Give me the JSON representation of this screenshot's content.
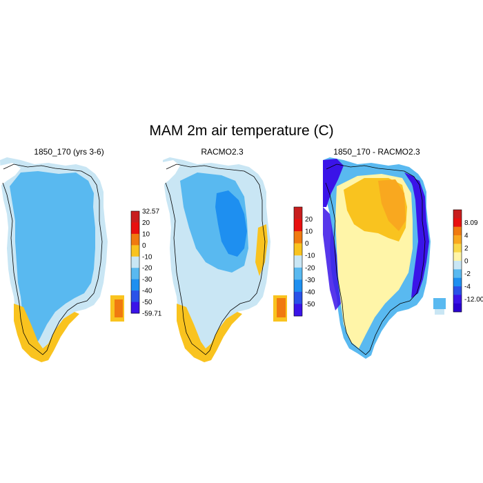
{
  "title": "MAM 2m air temperature (C)",
  "panels": [
    {
      "id": "left",
      "title": "1850_170 (yrs 3-6)",
      "colorbar": {
        "labels": [
          "32.57",
          "20",
          "10",
          "0",
          "-10",
          "-20",
          "-30",
          "-40",
          "-50",
          "-59.71"
        ],
        "colors": [
          "#c81e1e",
          "#e8100f",
          "#f07a10",
          "#f9c31f",
          "#c9e6f4",
          "#59b9f0",
          "#1e8ff0",
          "#2a52e8",
          "#3a14e8"
        ]
      }
    },
    {
      "id": "middle",
      "title": "RACMO2.3",
      "colorbar": {
        "labels": [
          "20",
          "10",
          "0",
          "-10",
          "-20",
          "-30",
          "-40",
          "-50"
        ],
        "colors": [
          "#c81e1e",
          "#e8100f",
          "#f07a10",
          "#f9c31f",
          "#c9e6f4",
          "#59b9f0",
          "#1e8ff0",
          "#2a52e8",
          "#3a14e8"
        ]
      }
    },
    {
      "id": "right",
      "title": "1850_170 - RACMO2.3",
      "colorbar": {
        "labels": [
          "8.09",
          "4",
          "2",
          "0",
          "-2",
          "-4",
          "-12.003"
        ],
        "colors": [
          "#c81e1e",
          "#e8100f",
          "#f07a10",
          "#f9a81f",
          "#f9d84a",
          "#fff5a8",
          "#c9e6f4",
          "#59b9f0",
          "#1e8ff0",
          "#2a52e8",
          "#3a14e8",
          "#2a00d0"
        ]
      }
    }
  ],
  "palette": {
    "ice_interior_left": "#59b9f0",
    "ice_margin": "#c9e6f4",
    "coast_warm": "#f9c31f",
    "cold_core": "#1e8ff0",
    "diff_warm": "#f9c31f",
    "diff_mild": "#fff5a8",
    "diff_cold": "#3a14e8",
    "coastline": "#000000"
  }
}
